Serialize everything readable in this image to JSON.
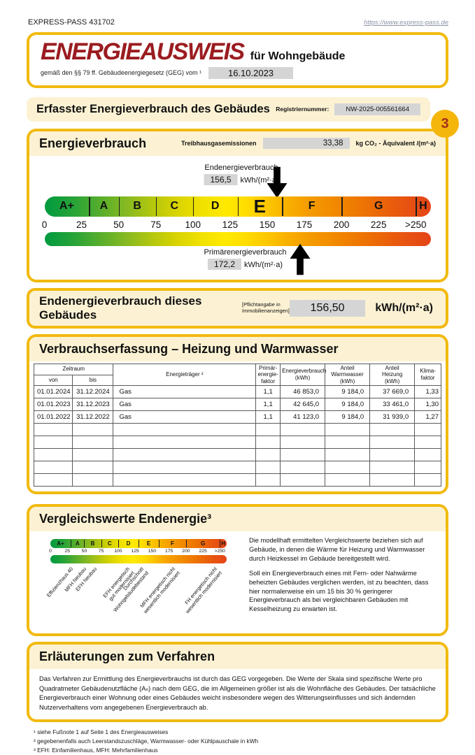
{
  "page": {
    "doc_ref": "EXPRESS-PASS 431702",
    "link": "https://www.express-pass.de",
    "badge": "3"
  },
  "title_box": {
    "title": "ENERGIEAUSWEIS",
    "subtitle": "für Wohngebäude",
    "law_text": "gemäß den §§ 79 ff. Gebäudeenergiegesetz (GEG) vom ¹",
    "date": "16.10.2023"
  },
  "section_header": {
    "title": "Erfasster Energieverbrauch des Gebäudes",
    "registration_label": "Registriernummer:",
    "registration_number": "NW-2025-005561664"
  },
  "energy_box": {
    "title": "Energieverbrauch",
    "ghg_label": "Treibhausgasemissionen",
    "ghg_value": "33,38",
    "ghg_unit": "kg CO₂ - Äquivalent  /(m²·a)",
    "end_energy_label": "Endenergieverbrauch",
    "end_energy_value": "156,5",
    "end_energy_unit": "kWh/(m²·a)",
    "primary_energy_label": "Primärenergieverbrauch",
    "primary_energy_value": "172,2",
    "primary_energy_unit": "kWh/(m²·a)"
  },
  "scale": {
    "axis_max": 260,
    "current_class": "E",
    "end_energy_marker": 156.5,
    "primary_energy_marker": 172.2,
    "classes": [
      {
        "label": "A+",
        "from": 0,
        "to": 30
      },
      {
        "label": "A",
        "from": 30,
        "to": 50
      },
      {
        "label": "B",
        "from": 50,
        "to": 75
      },
      {
        "label": "C",
        "from": 75,
        "to": 100
      },
      {
        "label": "D",
        "from": 100,
        "to": 130
      },
      {
        "label": "E",
        "from": 130,
        "to": 160
      },
      {
        "label": "F",
        "from": 160,
        "to": 200
      },
      {
        "label": "G",
        "from": 200,
        "to": 250
      },
      {
        "label": "H",
        "from": 250,
        "to": 260
      }
    ],
    "ticks": [
      {
        "label": "0",
        "value": 0
      },
      {
        "label": "25",
        "value": 25
      },
      {
        "label": "50",
        "value": 50
      },
      {
        "label": "75",
        "value": 75
      },
      {
        "label": "100",
        "value": 100
      },
      {
        "label": "125",
        "value": 125
      },
      {
        "label": "150",
        "value": 150
      },
      {
        "label": "175",
        "value": 175
      },
      {
        "label": "200",
        "value": 200
      },
      {
        "label": "225",
        "value": 225
      },
      {
        "label": ">250",
        "value": 250
      }
    ]
  },
  "end_energy_bar": {
    "title": "Endenergieverbrauch dieses Gebäudes",
    "note": "[Pflichtangabe in\nImmobilienanzeigen]",
    "value": "156,50",
    "unit": "kWh/(m²·a)"
  },
  "consumption_table": {
    "title": "Verbrauchserfassung – Heizung und Warmwasser",
    "headers": {
      "zeitraum": "Zeitraum",
      "von": "von",
      "bis": "bis",
      "energietraeger": "Energieträger ²",
      "primaerfaktor": "Primär-\nenergie-\nfaktor",
      "energieverbrauch": "Energieverbrauch\n(kWh)",
      "anteil_warmwasser": "Anteil\nWarmwasser\n(kWh)",
      "anteil_heizung": "Anteil\nHeizung\n(kWh)",
      "klimafaktor": "Klima-\nfaktor"
    },
    "rows": [
      [
        "01.01.2024",
        "31.12.2024",
        "Gas",
        "1,1",
        "46 853,0",
        "9 184,0",
        "37 669,0",
        "1,33"
      ],
      [
        "01.01.2023",
        "31.12.2023",
        "Gas",
        "1,1",
        "42 645,0",
        "9 184,0",
        "33 461,0",
        "1,30"
      ],
      [
        "01.01.2022",
        "31.12.2022",
        "Gas",
        "1,1",
        "41 123,0",
        "9 184,0",
        "31 939,0",
        "1,27"
      ]
    ],
    "empty_row_count": 5
  },
  "comparison": {
    "title": "Vergleichswerte Endenergie³",
    "benchmarks": [
      {
        "lines": [
          "Effizienzhaus 40"
        ],
        "value": 29
      },
      {
        "lines": [
          "MFH Neubau"
        ],
        "value": 48
      },
      {
        "lines": [
          "EFH Neubau"
        ],
        "value": 64
      },
      {
        "lines": [
          "EFH energetisch",
          "gut modernisiert"
        ],
        "value": 112
      },
      {
        "lines": [
          "Durchschnitt",
          "Wohngebäudebestand"
        ],
        "value": 133
      },
      {
        "lines": [
          "MFH energetisch nicht",
          "wesentlich modernisiert"
        ],
        "value": 180
      },
      {
        "lines": [
          "FH energetisch nicht",
          "wesentlich modernisiert"
        ],
        "value": 241
      }
    ],
    "paragraphs": [
      "Die modellhaft ermittelten Vergleichswerte beziehen sich auf Gebäude, in denen die Wärme für Heizung und Warmwasser durch Heizkessel im Gebäude bereitgestellt wird.",
      "Soll ein Energieverbrauch eines mit Fern- oder Nahwärme beheizten Gebäudes verglichen werden, ist zu beachten, dass hier normalerweise ein um 15 bis 30 % geringerer Energieverbrauch als bei vergleichbaren Gebäuden mit Kesselheizung zu erwarten ist."
    ]
  },
  "explanation": {
    "title": "Erläuterungen zum Verfahren",
    "text": "Das Verfahren zur Ermittlung des Energieverbrauchs ist durch das GEG vorgegeben. Die Werte der Skala sind spezifische Werte pro Quadratmeter Gebäudenutzfläche (Aₙ) nach dem GEG, die im Allgemeinen größer ist als die Wohnfläche des Gebäudes. Der tatsächliche Energieverbrauch einer Wohnung oder eines Gebäudes weicht insbesondere wegen des Witterungseinflusses und sich ändernden Nutzerverhaltens vom angegebenen Energieverbrauch ab."
  },
  "footnotes": [
    "¹ siehe Fußnote 1 auf Seite 1 des Energieausweises",
    "² gegebenenfalls auch Leerstandszuschläge, Warmwasser- oder Kühlpauschale in kWh",
    "³ EFH: Einfamilienhaus, MFH: Mehrfamilienhaus"
  ],
  "colors": {
    "gold_border": "#f1ba10",
    "cream_band": "#fcf2d3",
    "title_red": "#9b1c20",
    "value_box_gray": "#d5d5d5"
  }
}
